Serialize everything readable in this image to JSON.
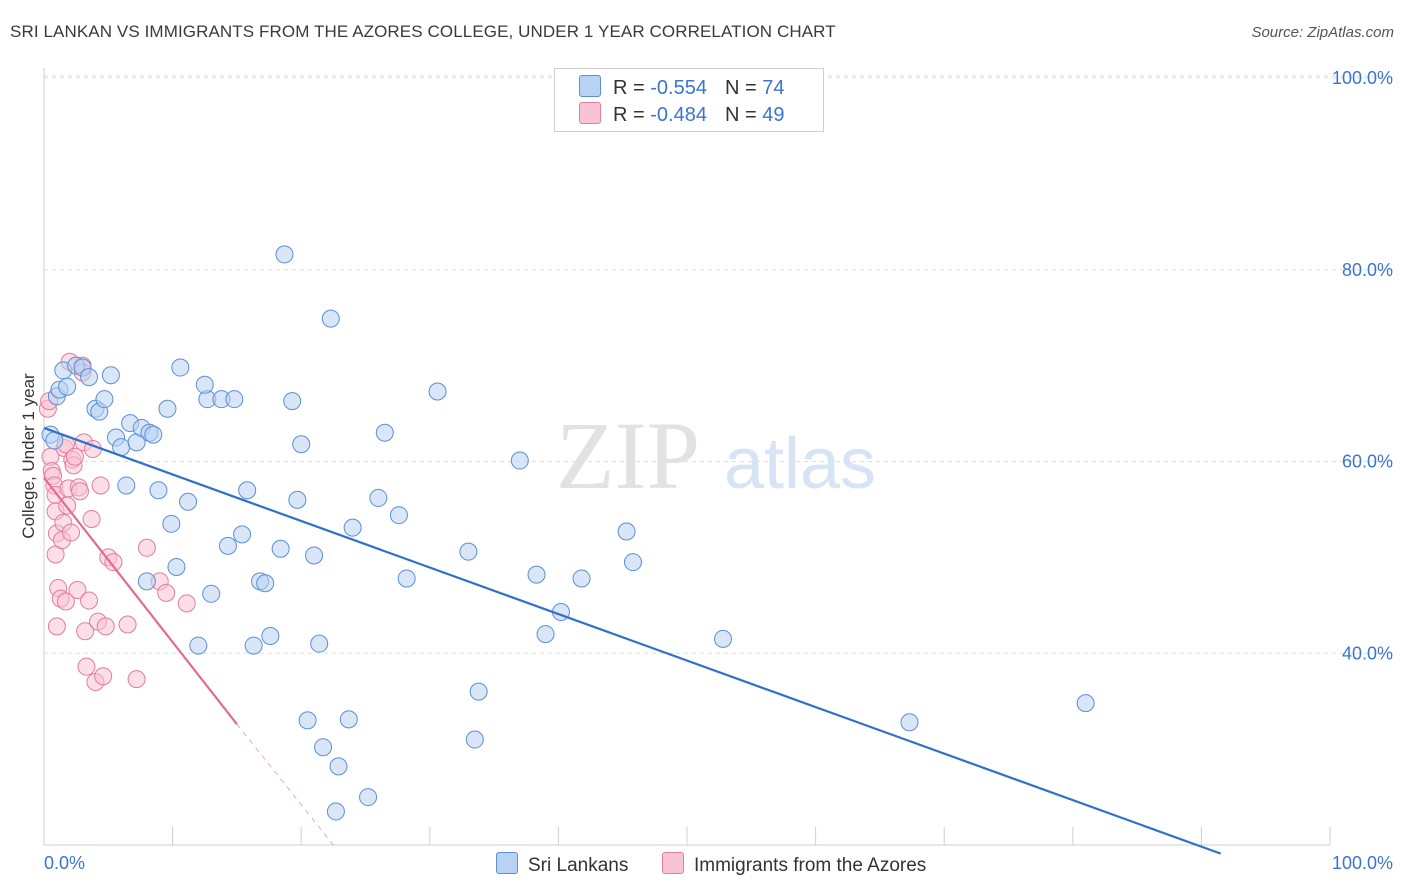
{
  "title": "SRI LANKAN VS IMMIGRANTS FROM THE AZORES COLLEGE, UNDER 1 YEAR CORRELATION CHART",
  "source": "Source: ZipAtlas.com",
  "watermark": {
    "zip": "ZIP",
    "atlas": "atlas"
  },
  "legend": {
    "r_label": "R = ",
    "n_label": "N = ",
    "rows": [
      {
        "r": "-0.554",
        "n": "74"
      },
      {
        "r": "-0.484",
        "n": "49"
      }
    ]
  },
  "colors": {
    "blue_fill": "#b8d2f3",
    "blue_stroke": "#5b8fd6",
    "blue_line": "#2f6fce",
    "pink_fill": "#f8c3d3",
    "pink_stroke": "#e37da0",
    "pink_line": "#e36a95",
    "grid": "#dddddd",
    "axis_text": "#3b74d1"
  },
  "chart_data": {
    "type": "scatter",
    "title": "SRI LANKAN VS IMMIGRANTS FROM THE AZORES COLLEGE, UNDER 1 YEAR CORRELATION CHART",
    "xlabel": "",
    "ylabel": "College, Under 1 year",
    "xlim": [
      0,
      100
    ],
    "ylim": [
      20,
      100
    ],
    "x_tick_labels": [
      "0.0%",
      "100.0%"
    ],
    "y_ticks": [
      40,
      60,
      80,
      100
    ],
    "y_tick_labels": [
      "40.0%",
      "60.0%",
      "80.0%",
      "100.0%"
    ],
    "legend_position": "top-center",
    "series": [
      {
        "name": "Sri Lankans",
        "R": -0.554,
        "N": 74,
        "trend": {
          "x0": 0,
          "y0": 63.5,
          "x1": 91.5,
          "y1": 19.1
        },
        "points": [
          [
            0.5,
            62.8
          ],
          [
            0.8,
            62.2
          ],
          [
            1.0,
            66.8
          ],
          [
            1.2,
            67.5
          ],
          [
            1.5,
            69.5
          ],
          [
            1.8,
            67.8
          ],
          [
            2.5,
            70.0
          ],
          [
            3.0,
            69.8
          ],
          [
            3.5,
            68.8
          ],
          [
            4.0,
            65.5
          ],
          [
            4.3,
            65.2
          ],
          [
            4.7,
            66.5
          ],
          [
            5.2,
            69.0
          ],
          [
            5.6,
            62.5
          ],
          [
            6.0,
            61.5
          ],
          [
            6.4,
            57.5
          ],
          [
            6.7,
            64.0
          ],
          [
            7.2,
            62.0
          ],
          [
            7.6,
            63.5
          ],
          [
            8.2,
            63.0
          ],
          [
            8.5,
            62.8
          ],
          [
            8.0,
            47.5
          ],
          [
            8.9,
            57.0
          ],
          [
            9.6,
            65.5
          ],
          [
            9.9,
            53.5
          ],
          [
            10.3,
            49.0
          ],
          [
            10.6,
            69.8
          ],
          [
            11.2,
            55.8
          ],
          [
            12.0,
            40.8
          ],
          [
            12.7,
            66.5
          ],
          [
            12.5,
            68.0
          ],
          [
            13.0,
            46.2
          ],
          [
            13.8,
            66.5
          ],
          [
            14.3,
            51.2
          ],
          [
            14.8,
            66.5
          ],
          [
            15.4,
            52.4
          ],
          [
            15.8,
            57.0
          ],
          [
            16.3,
            40.8
          ],
          [
            16.8,
            47.5
          ],
          [
            17.2,
            47.3
          ],
          [
            17.6,
            41.8
          ],
          [
            18.4,
            50.9
          ],
          [
            18.7,
            81.6
          ],
          [
            19.3,
            66.3
          ],
          [
            19.7,
            56.0
          ],
          [
            20.0,
            61.8
          ],
          [
            20.5,
            33.0
          ],
          [
            21.0,
            50.2
          ],
          [
            21.4,
            41.0
          ],
          [
            21.7,
            30.2
          ],
          [
            22.3,
            74.9
          ],
          [
            22.9,
            28.2
          ],
          [
            22.7,
            23.5
          ],
          [
            23.7,
            33.1
          ],
          [
            24.0,
            53.1
          ],
          [
            25.2,
            25.0
          ],
          [
            26.0,
            56.2
          ],
          [
            26.5,
            63.0
          ],
          [
            27.6,
            54.4
          ],
          [
            28.2,
            47.8
          ],
          [
            30.6,
            67.3
          ],
          [
            33.0,
            50.6
          ],
          [
            33.5,
            31.0
          ],
          [
            33.8,
            36.0
          ],
          [
            37.0,
            60.1
          ],
          [
            38.3,
            48.2
          ],
          [
            39.0,
            42.0
          ],
          [
            40.2,
            44.3
          ],
          [
            41.8,
            47.8
          ],
          [
            45.3,
            52.7
          ],
          [
            45.8,
            49.5
          ],
          [
            52.8,
            41.5
          ],
          [
            67.3,
            32.8
          ],
          [
            81.0,
            34.8
          ]
        ]
      },
      {
        "name": "Immigrants from the Azores",
        "R": -0.484,
        "N": 49,
        "trend": {
          "x0": 0,
          "y0": 58.3,
          "x1": 15.0,
          "y1": 32.6,
          "dashed_to": {
            "x": 22.5,
            "y": 20.0
          }
        },
        "points": [
          [
            0.3,
            65.5
          ],
          [
            0.4,
            66.3
          ],
          [
            0.5,
            60.5
          ],
          [
            0.6,
            59.0
          ],
          [
            0.7,
            58.5
          ],
          [
            0.8,
            57.5
          ],
          [
            0.9,
            56.5
          ],
          [
            0.9,
            54.8
          ],
          [
            1.0,
            52.5
          ],
          [
            0.9,
            50.3
          ],
          [
            1.1,
            46.8
          ],
          [
            1.0,
            42.8
          ],
          [
            1.3,
            45.7
          ],
          [
            1.4,
            51.8
          ],
          [
            1.5,
            53.6
          ],
          [
            1.6,
            61.4
          ],
          [
            1.7,
            61.8
          ],
          [
            1.8,
            55.4
          ],
          [
            1.9,
            57.2
          ],
          [
            2.0,
            70.4
          ],
          [
            2.1,
            52.6
          ],
          [
            2.2,
            60.2
          ],
          [
            2.3,
            59.6
          ],
          [
            2.4,
            60.5
          ],
          [
            2.6,
            46.6
          ],
          [
            2.7,
            57.3
          ],
          [
            2.8,
            56.9
          ],
          [
            3.0,
            70.0
          ],
          [
            3.0,
            69.3
          ],
          [
            3.1,
            62.0
          ],
          [
            3.2,
            42.3
          ],
          [
            3.3,
            38.6
          ],
          [
            3.5,
            45.5
          ],
          [
            3.7,
            54.0
          ],
          [
            3.8,
            61.3
          ],
          [
            4.0,
            37.0
          ],
          [
            4.2,
            43.3
          ],
          [
            4.4,
            57.5
          ],
          [
            4.6,
            37.6
          ],
          [
            4.8,
            42.8
          ],
          [
            5.0,
            50.0
          ],
          [
            5.4,
            49.5
          ],
          [
            6.5,
            43.0
          ],
          [
            7.2,
            37.3
          ],
          [
            8.0,
            51.0
          ],
          [
            9.0,
            47.5
          ],
          [
            9.5,
            46.3
          ],
          [
            11.1,
            45.2
          ],
          [
            1.7,
            45.4
          ]
        ]
      }
    ]
  },
  "bottom_legend": [
    {
      "label": "Sri Lankans"
    },
    {
      "label": "Immigrants from the Azores"
    }
  ]
}
